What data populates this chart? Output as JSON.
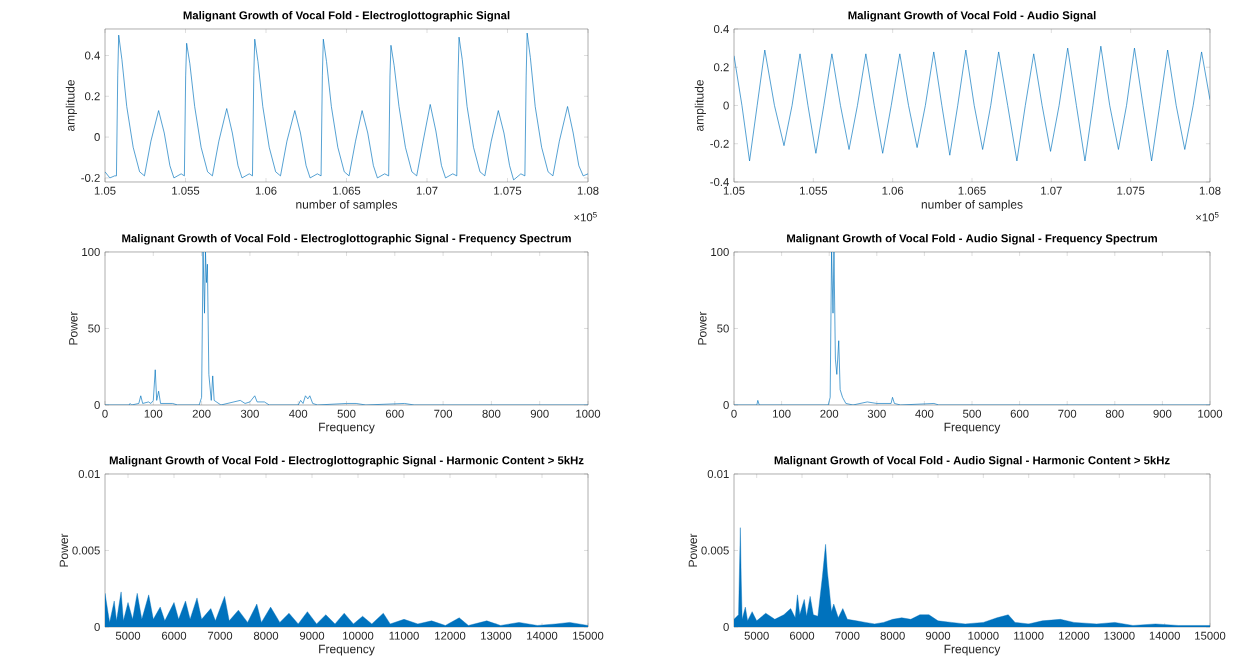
{
  "chart_data": [
    {
      "type": "line",
      "title": "Malignant Growth of Vocal Fold - Electroglottographic Signal",
      "xlabel": "number of samples",
      "ylabel": "amplitude",
      "color": "#0072bd",
      "annotations": [
        "×10$^{5}$"
      ],
      "xlim": [
        1.05,
        1.08
      ],
      "ylim": [
        -0.22,
        0.53
      ],
      "xticks": [
        1.05,
        1.055,
        1.06,
        1.065,
        1.07,
        1.075,
        1.08
      ],
      "yticks": [
        -0.2,
        0,
        0.2,
        0.4
      ],
      "x": [
        1.05,
        1.0503,
        1.0506,
        1.05071,
        1.05079,
        1.05085,
        1.05105,
        1.05135,
        1.05175,
        1.05215,
        1.05245,
        1.05285,
        1.05333,
        1.05368,
        1.05403,
        1.05428,
        1.05473,
        1.05493,
        1.05501,
        1.05507,
        1.05527,
        1.05557,
        1.05597,
        1.05637,
        1.05667,
        1.05707,
        1.05756,
        1.05791,
        1.05826,
        1.05851,
        1.05896,
        1.05916,
        1.05924,
        1.0593,
        1.0595,
        1.0598,
        1.0602,
        1.0606,
        1.0609,
        1.0613,
        1.06179,
        1.06214,
        1.06249,
        1.06274,
        1.06319,
        1.06342,
        1.0635,
        1.06356,
        1.06376,
        1.06406,
        1.06446,
        1.06486,
        1.06516,
        1.06556,
        1.06597,
        1.06632,
        1.06667,
        1.06692,
        1.06737,
        1.06762,
        1.0677,
        1.06776,
        1.06796,
        1.06826,
        1.06866,
        1.06906,
        1.06936,
        1.06976,
        1.0702,
        1.07055,
        1.0709,
        1.07115,
        1.0716,
        1.07185,
        1.07193,
        1.07199,
        1.07219,
        1.07249,
        1.07289,
        1.07329,
        1.07359,
        1.07399,
        1.07443,
        1.07478,
        1.07513,
        1.07538,
        1.07583,
        1.07608,
        1.07616,
        1.07622,
        1.07642,
        1.07672,
        1.07712,
        1.07752,
        1.07782,
        1.07822,
        1.07873,
        1.07908,
        1.07943,
        1.0797,
        1.08
      ],
      "values": [
        -0.17,
        -0.2,
        -0.19,
        -0.19,
        0.3,
        0.5,
        0.38,
        0.15,
        -0.05,
        -0.17,
        -0.19,
        -0.02,
        0.13,
        0.02,
        -0.14,
        -0.2,
        -0.18,
        -0.19,
        0.3,
        0.46,
        0.36,
        0.15,
        -0.05,
        -0.17,
        -0.19,
        -0.02,
        0.14,
        0.02,
        -0.14,
        -0.2,
        -0.18,
        -0.19,
        0.3,
        0.48,
        0.37,
        0.15,
        -0.05,
        -0.17,
        -0.19,
        -0.02,
        0.13,
        0.02,
        -0.14,
        -0.2,
        -0.18,
        -0.19,
        0.3,
        0.48,
        0.37,
        0.15,
        -0.05,
        -0.17,
        -0.19,
        -0.02,
        0.13,
        0.02,
        -0.14,
        -0.2,
        -0.18,
        -0.19,
        0.3,
        0.45,
        0.35,
        0.15,
        -0.05,
        -0.17,
        -0.19,
        -0.02,
        0.16,
        0.03,
        -0.14,
        -0.2,
        -0.18,
        -0.19,
        0.3,
        0.49,
        0.38,
        0.15,
        -0.05,
        -0.17,
        -0.19,
        -0.02,
        0.13,
        0.02,
        -0.14,
        -0.21,
        -0.18,
        -0.19,
        0.3,
        0.51,
        0.39,
        0.15,
        -0.05,
        -0.17,
        -0.19,
        -0.02,
        0.15,
        0.02,
        -0.14,
        -0.19,
        -0.18
      ]
    },
    {
      "type": "line",
      "title": "Malignant Growth of Vocal Fold - Audio Signal",
      "xlabel": "number of samples",
      "ylabel": "amplitude",
      "color": "#0072bd",
      "annotations": [
        "×10$^{5}$"
      ],
      "xlim": [
        1.05,
        1.08
      ],
      "ylim": [
        -0.4,
        0.4
      ],
      "xticks": [
        1.05,
        1.055,
        1.06,
        1.065,
        1.07,
        1.075,
        1.08
      ],
      "yticks": [
        -0.4,
        -0.2,
        0,
        0.2,
        0.4
      ],
      "x": [
        1.05,
        1.0505,
        1.05098,
        1.05146,
        1.05194,
        1.05255,
        1.05315,
        1.05366,
        1.05416,
        1.05466,
        1.05516,
        1.05566,
        1.05617,
        1.05671,
        1.05725,
        1.05778,
        1.05831,
        1.05884,
        1.05937,
        1.05991,
        1.06045,
        1.061,
        1.06154,
        1.06206,
        1.06259,
        1.0631,
        1.0636,
        1.0641,
        1.06461,
        1.06514,
        1.06567,
        1.06618,
        1.06668,
        1.06725,
        1.06783,
        1.06836,
        1.06889,
        1.06942,
        1.06995,
        1.07049,
        1.07103,
        1.07158,
        1.07212,
        1.07262,
        1.07312,
        1.07368,
        1.07423,
        1.07474,
        1.07524,
        1.07578,
        1.07632,
        1.07683,
        1.07733,
        1.07787,
        1.07841,
        1.07894,
        1.07947,
        1.08
      ],
      "values": [
        0.26,
        0,
        -0.29,
        0,
        0.29,
        0,
        -0.21,
        0,
        0.27,
        0,
        -0.25,
        0,
        0.27,
        0,
        -0.23,
        0,
        0.27,
        0,
        -0.25,
        0,
        0.27,
        0,
        -0.22,
        0,
        0.28,
        0,
        -0.26,
        0,
        0.29,
        0,
        -0.23,
        0,
        0.28,
        0,
        -0.29,
        0,
        0.27,
        0,
        -0.24,
        0,
        0.3,
        0,
        -0.29,
        0,
        0.31,
        0,
        -0.23,
        0,
        0.3,
        0,
        -0.29,
        0,
        0.29,
        0,
        -0.23,
        0,
        0.28,
        0.03
      ]
    },
    {
      "type": "line",
      "title": "Malignant Growth of Vocal Fold - Electroglottographic Signal - Frequency Spectrum",
      "xlabel": "Frequency",
      "ylabel": "Power",
      "color": "#0072bd",
      "xlim": [
        0,
        1000
      ],
      "ylim": [
        0,
        100
      ],
      "xticks": [
        0,
        100,
        200,
        300,
        400,
        500,
        600,
        700,
        800,
        900,
        1000
      ],
      "yticks": [
        0,
        50,
        100
      ],
      "x": [
        0,
        50,
        52,
        55,
        70,
        74,
        78,
        90,
        95,
        100,
        104,
        107,
        111,
        115,
        140,
        150,
        195,
        200,
        203,
        206,
        208,
        210,
        212,
        215,
        220,
        223,
        226,
        240,
        280,
        290,
        300,
        310,
        315,
        330,
        340,
        400,
        405,
        410,
        415,
        420,
        424,
        430,
        440,
        500,
        520,
        540,
        620,
        640,
        1000
      ],
      "values": [
        0,
        0,
        1,
        0,
        1,
        6,
        1,
        2,
        1,
        3,
        23,
        3,
        9,
        1,
        1,
        0,
        0,
        5,
        100,
        60,
        100,
        80,
        92,
        20,
        3,
        19,
        3,
        0,
        3,
        1,
        2,
        6,
        2,
        2,
        0,
        0,
        3,
        1,
        6,
        4,
        6,
        1,
        0,
        1,
        1,
        0,
        1,
        0,
        0
      ]
    },
    {
      "type": "line",
      "title": "Malignant Growth of Vocal Fold - Audio Signal - Frequency Spectrum",
      "xlabel": "Frequency",
      "ylabel": "Power",
      "color": "#0072bd",
      "xlim": [
        0,
        1000
      ],
      "ylim": [
        0,
        100
      ],
      "xticks": [
        0,
        100,
        200,
        300,
        400,
        500,
        600,
        700,
        800,
        900,
        1000
      ],
      "yticks": [
        0,
        50,
        100
      ],
      "x": [
        0,
        48,
        50,
        53,
        100,
        198,
        202,
        205,
        208,
        210,
        213,
        216,
        220,
        223,
        228,
        235,
        250,
        280,
        300,
        330,
        333,
        337,
        350,
        420,
        430,
        1000
      ],
      "values": [
        0,
        0,
        3,
        0,
        0,
        0,
        5,
        100,
        60,
        100,
        30,
        20,
        42,
        10,
        5,
        1,
        0,
        2,
        1,
        1,
        5,
        1,
        0,
        1,
        0,
        0
      ]
    },
    {
      "type": "area",
      "title": "Malignant Growth of Vocal Fold - Electroglottographic Signal - Harmonic Content > 5kHz",
      "xlabel": "Frequency",
      "ylabel": "Power",
      "color": "#0072bd",
      "xlim": [
        4500,
        15000
      ],
      "ylim": [
        0,
        0.01
      ],
      "xticks": [
        5000,
        6000,
        7000,
        8000,
        9000,
        10000,
        11000,
        12000,
        13000,
        14000,
        15000
      ],
      "yticks": [
        0,
        0.005,
        0.01
      ],
      "x": [
        4500,
        4600,
        4700,
        4750,
        4850,
        4900,
        5000,
        5100,
        5200,
        5300,
        5450,
        5550,
        5700,
        5800,
        6000,
        6100,
        6250,
        6350,
        6500,
        6600,
        6800,
        6900,
        7100,
        7200,
        7400,
        7600,
        7800,
        7900,
        8100,
        8300,
        8500,
        8700,
        8900,
        9100,
        9300,
        9500,
        9700,
        9900,
        10100,
        10300,
        10550,
        10700,
        11000,
        11300,
        11600,
        11900,
        12200,
        12400,
        12800,
        13100,
        13500,
        13900,
        14300,
        14600,
        15000
      ],
      "values": [
        0.0022,
        0.0003,
        0.0017,
        0.0004,
        0.0023,
        0.0004,
        0.0016,
        0.0005,
        0.0022,
        0.0005,
        0.0021,
        0.0005,
        0.0013,
        0.0004,
        0.0016,
        0.0005,
        0.0017,
        0.0005,
        0.0019,
        0.0005,
        0.0012,
        0.0004,
        0.002,
        0.0004,
        0.0011,
        0.0003,
        0.0015,
        0.0003,
        0.0013,
        0.0003,
        0.0009,
        0.0002,
        0.001,
        0.0002,
        0.0008,
        0.0002,
        0.0009,
        0.0002,
        0.0007,
        0.0002,
        0.0009,
        0.0002,
        0.0005,
        0.0002,
        0.0004,
        0.0001,
        0.0006,
        0.0001,
        0.0004,
        0.0001,
        0.0003,
        0.0001,
        0.0002,
        0.0003,
        0.0001
      ]
    },
    {
      "type": "area",
      "title": "Malignant Growth of Vocal Fold - Audio Signal - Harmonic Content > 5kHz",
      "xlabel": "Frequency",
      "ylabel": "Power",
      "color": "#0072bd",
      "xlim": [
        4500,
        15000
      ],
      "ylim": [
        0,
        0.01
      ],
      "xticks": [
        5000,
        6000,
        7000,
        8000,
        9000,
        10000,
        11000,
        12000,
        13000,
        14000,
        15000
      ],
      "yticks": [
        0,
        0.005,
        0.01
      ],
      "x": [
        4500,
        4600,
        4640,
        4660,
        4680,
        4750,
        4800,
        4900,
        5000,
        5200,
        5400,
        5600,
        5750,
        5850,
        5900,
        5950,
        6050,
        6100,
        6180,
        6250,
        6350,
        6450,
        6520,
        6560,
        6600,
        6650,
        6700,
        6800,
        6900,
        7000,
        7200,
        7400,
        7600,
        7800,
        8000,
        8200,
        8400,
        8600,
        8800,
        9000,
        9300,
        9600,
        10000,
        10300,
        10550,
        10700,
        11000,
        11300,
        11700,
        12000,
        12500,
        12900,
        13300,
        13800,
        14300,
        15000
      ],
      "values": [
        0.0005,
        0.0008,
        0.0065,
        0.003,
        0.0005,
        0.0013,
        0.0004,
        0.001,
        0.0004,
        0.0009,
        0.0005,
        0.0008,
        0.0012,
        0.0006,
        0.0021,
        0.0008,
        0.0018,
        0.0007,
        0.002,
        0.0008,
        0.0007,
        0.0033,
        0.0054,
        0.0036,
        0.0025,
        0.001,
        0.0015,
        0.0006,
        0.0012,
        0.0005,
        0.0004,
        0.0003,
        0.0002,
        0.0003,
        0.0005,
        0.0006,
        0.0005,
        0.0008,
        0.0008,
        0.0004,
        0.0003,
        0.0002,
        0.0003,
        0.0006,
        0.0008,
        0.0003,
        0.0002,
        0.0004,
        0.0005,
        0.0003,
        0.0002,
        0.0003,
        0.0001,
        0.0002,
        0.0001,
        0.0001
      ]
    }
  ]
}
